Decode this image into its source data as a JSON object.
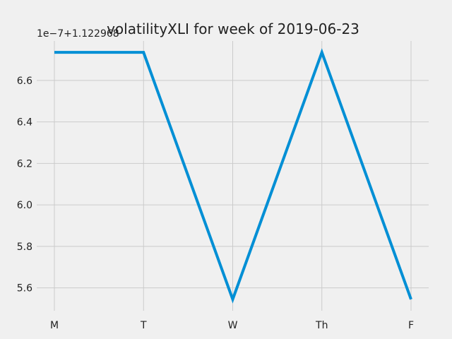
{
  "chart_data": {
    "type": "line",
    "title": "volatilityXLI for week of 2019-06-23",
    "xlabel": "",
    "ylabel": "",
    "categories": [
      "M",
      "T",
      "W",
      "Th",
      "F"
    ],
    "series": [
      {
        "values": [
          6.735,
          6.735,
          5.545,
          6.735,
          5.545
        ],
        "color": "#008fd5"
      }
    ],
    "y_offset_label": "1e−7+1.122968",
    "ylim": [
      5.49,
      6.79
    ],
    "yticks": [
      5.6,
      5.8,
      6.0,
      6.2,
      6.4,
      6.6
    ],
    "ytick_labels": [
      "5.6",
      "5.8",
      "6.0",
      "6.2",
      "6.4",
      "6.6"
    ],
    "grid": true,
    "background": "#f0f0f0",
    "grid_color": "#cbcbcb"
  }
}
